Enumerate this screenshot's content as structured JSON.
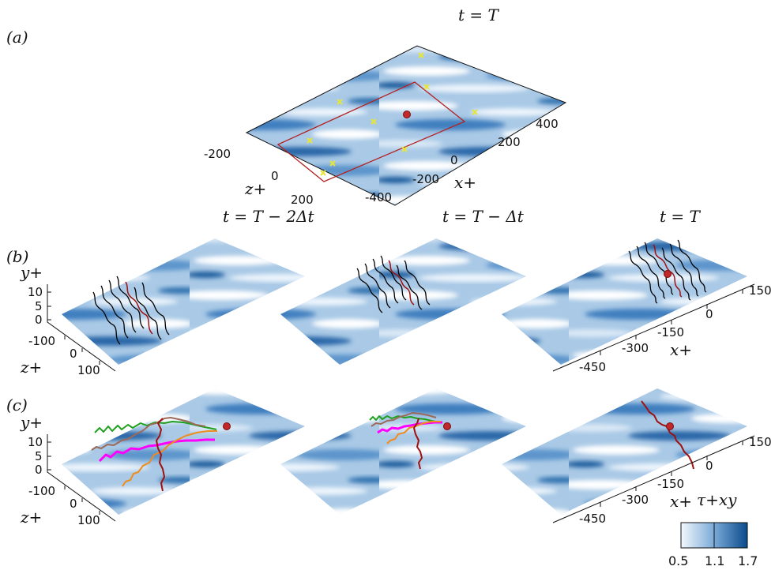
{
  "panels": {
    "a": {
      "tag": "(a)",
      "time": "t = T"
    },
    "b": {
      "tag": "(b)",
      "times": [
        "t = T − 2Δt",
        "t = T − Δt",
        "t = T"
      ]
    },
    "c": {
      "tag": "(c)"
    }
  },
  "axes": {
    "x": "x+",
    "y": "y+",
    "z": "z+",
    "a_x_ticks": [
      "400",
      "200",
      "0",
      "-200",
      "-400"
    ],
    "a_z_ticks": [
      "-200",
      "0",
      "200"
    ],
    "xy_ticks_x": [
      "150",
      "0",
      "-150",
      "-300",
      "-450"
    ],
    "y_ticks": [
      "10",
      "5",
      "0"
    ],
    "z_ticks": [
      "-100",
      "0",
      "100"
    ]
  },
  "colorbar": {
    "label": "τ+xy",
    "ticks": [
      "0.5",
      "1.1",
      "1.7"
    ],
    "min": 0.5,
    "max": 1.7,
    "low_color": "#f3f8fd",
    "high_color": "#0b4a8c"
  },
  "colors": {
    "frame_red": "#b22222",
    "marker_yellow": "#e6e639",
    "traj_green": "#1fa01f",
    "traj_magenta": "#ff00ff",
    "traj_orange": "#f08c1e",
    "traj_brown": "#9c6a5a",
    "traj_dark_red": "#9e1212",
    "line_black": "#000000"
  }
}
